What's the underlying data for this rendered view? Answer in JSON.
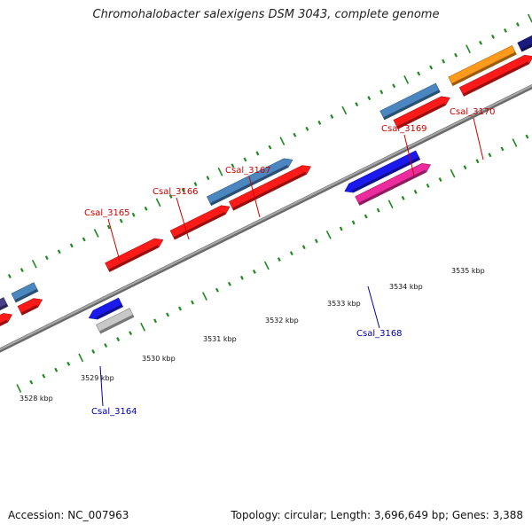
{
  "title": "Chromohalobacter salexigens DSM 3043, complete genome",
  "footer": {
    "accession": "Accession: NC_007963",
    "summary": "Topology: circular; Length: 3,696,649 bp; Genes: 3,388"
  },
  "colors": {
    "backbone": "#8a8a8a",
    "tick_green": "#1f8a1f",
    "cds_red": "#ff1a1a",
    "cds_steelblue": "#4a86c0",
    "cds_blue": "#1a1aee",
    "cds_magenta": "#ee2b9e",
    "cds_gray": "#c8c8c8",
    "cds_orange": "#ff9a1a",
    "cds_darkpurple": "#4a3f8a",
    "cds_navy": "#1a1a80",
    "label_red": "#cc0000",
    "label_blue": "#0000aa"
  },
  "kbp_ticks": [
    {
      "text": "3528 kbp"
    },
    {
      "text": "3529 kbp"
    },
    {
      "text": "3530 kbp"
    },
    {
      "text": "3531 kbp"
    },
    {
      "text": "3532 kbp"
    },
    {
      "text": "3533 kbp"
    },
    {
      "text": "3534 kbp"
    },
    {
      "text": "3535 kbp"
    }
  ],
  "gene_labels": [
    {
      "text": "Csal_3164",
      "strand": "minus"
    },
    {
      "text": "Csal_3165",
      "strand": "plus"
    },
    {
      "text": "Csal_3166",
      "strand": "plus"
    },
    {
      "text": "Csal_3167",
      "strand": "plus"
    },
    {
      "text": "Csal_3168",
      "strand": "minus"
    },
    {
      "text": "Csal_3169",
      "strand": "plus"
    },
    {
      "text": "Csal_3170",
      "strand": "plus"
    }
  ]
}
